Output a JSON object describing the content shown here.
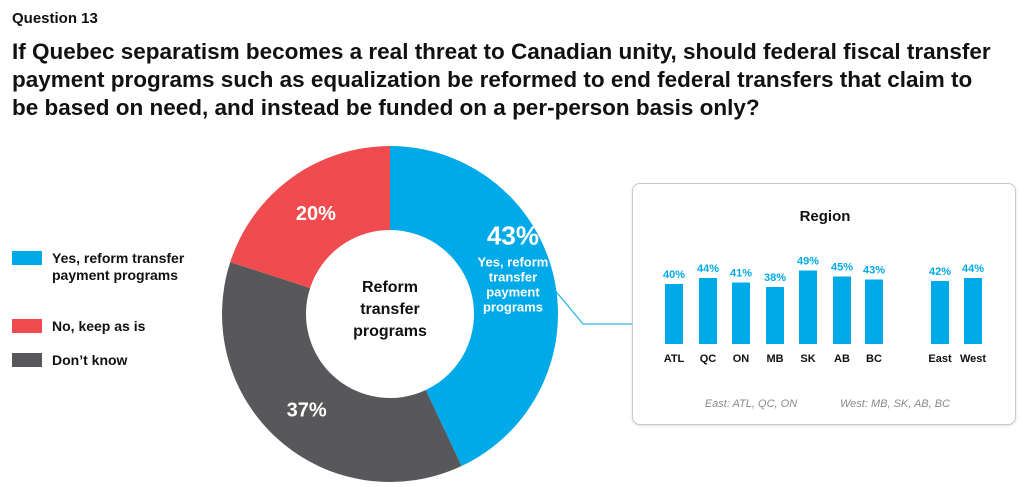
{
  "header": {
    "question_number": "Question 13",
    "question_text": "If Quebec separatism becomes a real threat to Canadian unity, should federal fiscal transfer payment programs such as equalization be reformed to end federal transfers that claim to be based on need, and instead be funded on a per-person basis only?"
  },
  "legend": [
    {
      "label": "Yes, reform transfer payment programs",
      "color": "#00a9e8"
    },
    {
      "label": "No, keep as is",
      "color": "#f04b4e"
    },
    {
      "label": "Don’t know",
      "color": "#58585a"
    }
  ],
  "chart_data": [
    {
      "type": "pie",
      "center_label": "Reform transfer programs",
      "slices": [
        {
          "label": "Yes, reform transfer payment programs",
          "value": 43,
          "display": "43%",
          "slice_caption": "Yes, reform transfer payment programs",
          "color": "#00a9e8"
        },
        {
          "label": "Don’t know",
          "value": 37,
          "display": "37%",
          "color": "#58585a"
        },
        {
          "label": "No, keep as is",
          "value": 20,
          "display": "20%",
          "color": "#f04b4e"
        }
      ]
    },
    {
      "type": "bar",
      "title": "Region",
      "categories": [
        "ATL",
        "QC",
        "ON",
        "MB",
        "SK",
        "AB",
        "BC",
        "East",
        "West"
      ],
      "values": [
        40,
        44,
        41,
        38,
        49,
        45,
        43,
        42,
        44
      ],
      "labels": [
        "40%",
        "44%",
        "41%",
        "38%",
        "49%",
        "45%",
        "43%",
        "42%",
        "44%"
      ],
      "color": "#00a9e8",
      "notes": [
        "East: ATL, QC, ON",
        "West: MB, SK, AB, BC"
      ]
    }
  ]
}
